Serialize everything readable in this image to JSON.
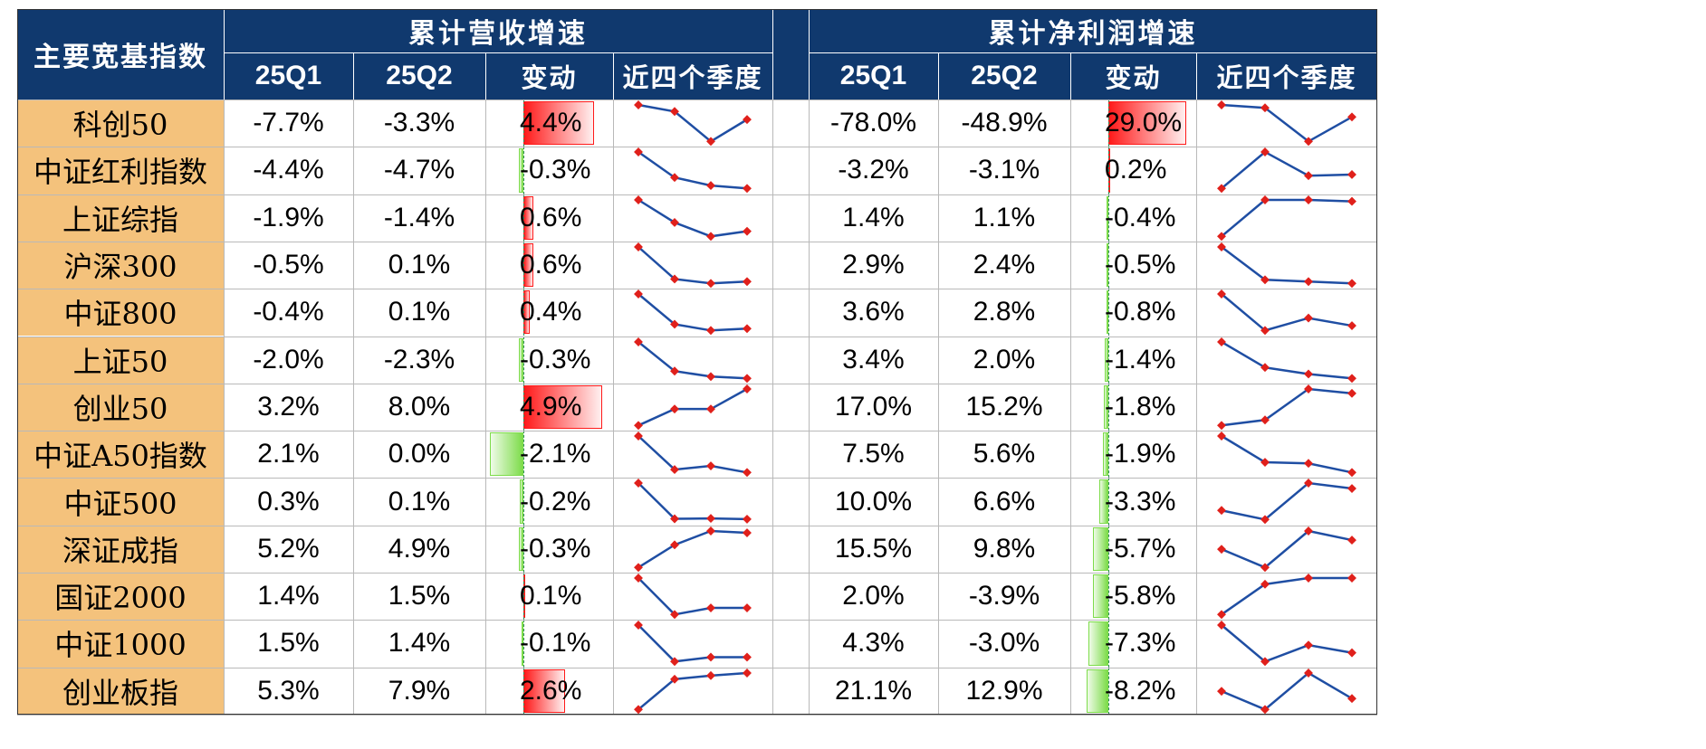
{
  "header": {
    "index_col": "主要宽基指数",
    "group1_title": "累计营收增速",
    "group2_title": "累计净利润增速",
    "sub": [
      "25Q1",
      "25Q2",
      "变动",
      "近四个季度"
    ]
  },
  "colors": {
    "header_bg": "#10396e",
    "name_bg": "#f4c27c",
    "positive_bar": "#ff1a1a",
    "negative_bar": "#7ddc4a",
    "spark_line": "#1f4ea3",
    "spark_marker": "#e0201b"
  },
  "chart_data": {
    "type": "table",
    "columns": [
      "主要宽基指数",
      "营收25Q1",
      "营收25Q2",
      "营收变动",
      "营收近四个季度",
      "净利润25Q1",
      "净利润25Q2",
      "净利润变动",
      "净利润近四个季度"
    ],
    "rows": [
      {
        "name": "科创50",
        "rev_q1": "-7.7%",
        "rev_q2": "-3.3%",
        "rev_chg": "4.4%",
        "rev_chg_v": 4.4,
        "rev_trend": [
          0.0,
          0.18,
          1.0,
          0.4
        ],
        "np_q1": "-78.0%",
        "np_q2": "-48.9%",
        "np_chg": "29.0%",
        "np_chg_v": 29.0,
        "np_trend": [
          0.0,
          0.08,
          1.0,
          0.33
        ]
      },
      {
        "name": "中证红利指数",
        "rev_q1": "-4.4%",
        "rev_q2": "-4.7%",
        "rev_chg": "-0.3%",
        "rev_chg_v": -0.3,
        "rev_trend": [
          0.0,
          0.7,
          0.92,
          1.0
        ],
        "np_q1": "-3.2%",
        "np_q2": "-3.1%",
        "np_chg": "0.2%",
        "np_chg_v": 0.2,
        "np_trend": [
          1.0,
          0.0,
          0.65,
          0.62
        ]
      },
      {
        "name": "上证综指",
        "rev_q1": "-1.9%",
        "rev_q2": "-1.4%",
        "rev_chg": "0.6%",
        "rev_chg_v": 0.6,
        "rev_trend": [
          0.0,
          0.62,
          1.0,
          0.86
        ],
        "np_q1": "1.4%",
        "np_q2": "1.1%",
        "np_chg": "-0.4%",
        "np_chg_v": -0.4,
        "np_trend": [
          1.0,
          0.0,
          0.0,
          0.04
        ]
      },
      {
        "name": "沪深300",
        "rev_q1": "-0.5%",
        "rev_q2": "0.1%",
        "rev_chg": "0.6%",
        "rev_chg_v": 0.6,
        "rev_trend": [
          0.0,
          0.88,
          1.0,
          0.95
        ],
        "np_q1": "2.9%",
        "np_q2": "2.4%",
        "np_chg": "-0.5%",
        "np_chg_v": -0.5,
        "np_trend": [
          0.0,
          0.9,
          0.95,
          1.0
        ]
      },
      {
        "name": "中证800",
        "rev_q1": "-0.4%",
        "rev_q2": "0.1%",
        "rev_chg": "0.4%",
        "rev_chg_v": 0.4,
        "rev_trend": [
          0.0,
          0.83,
          1.0,
          0.95
        ],
        "np_q1": "3.6%",
        "np_q2": "2.8%",
        "np_chg": "-0.8%",
        "np_chg_v": -0.8,
        "np_trend": [
          0.0,
          1.0,
          0.66,
          0.87
        ]
      },
      {
        "name": "上证50",
        "rev_q1": "-2.0%",
        "rev_q2": "-2.3%",
        "rev_chg": "-0.3%",
        "rev_chg_v": -0.3,
        "rev_trend": [
          0.0,
          0.8,
          0.95,
          1.0
        ],
        "np_q1": "3.4%",
        "np_q2": "2.0%",
        "np_chg": "-1.4%",
        "np_chg_v": -1.4,
        "np_trend": [
          0.0,
          0.7,
          0.88,
          1.0
        ]
      },
      {
        "name": "创业50",
        "rev_q1": "3.2%",
        "rev_q2": "8.0%",
        "rev_chg": "4.9%",
        "rev_chg_v": 4.9,
        "rev_trend": [
          1.0,
          0.55,
          0.55,
          0.0
        ],
        "np_q1": "17.0%",
        "np_q2": "15.2%",
        "np_chg": "-1.8%",
        "np_chg_v": -1.8,
        "np_trend": [
          1.0,
          0.85,
          0.0,
          0.12
        ]
      },
      {
        "name": "中证A50指数",
        "rev_q1": "2.1%",
        "rev_q2": "0.0%",
        "rev_chg": "-2.1%",
        "rev_chg_v": -2.1,
        "rev_trend": [
          0.0,
          0.92,
          0.82,
          1.0
        ],
        "np_q1": "7.5%",
        "np_q2": "5.6%",
        "np_chg": "-1.9%",
        "np_chg_v": -1.9,
        "np_trend": [
          0.0,
          0.72,
          0.75,
          1.0
        ]
      },
      {
        "name": "中证500",
        "rev_q1": "0.3%",
        "rev_q2": "0.1%",
        "rev_chg": "-0.2%",
        "rev_chg_v": -0.2,
        "rev_trend": [
          0.0,
          0.98,
          0.97,
          0.99
        ],
        "np_q1": "10.0%",
        "np_q2": "6.6%",
        "np_chg": "-3.3%",
        "np_chg_v": -3.3,
        "np_trend": [
          0.75,
          1.0,
          0.0,
          0.15
        ]
      },
      {
        "name": "深证成指",
        "rev_q1": "5.2%",
        "rev_q2": "4.9%",
        "rev_chg": "-0.3%",
        "rev_chg_v": -0.3,
        "rev_trend": [
          1.0,
          0.38,
          0.0,
          0.05
        ],
        "np_q1": "15.5%",
        "np_q2": "9.8%",
        "np_chg": "-5.7%",
        "np_chg_v": -5.7,
        "np_trend": [
          0.5,
          1.0,
          0.0,
          0.25
        ]
      },
      {
        "name": "国证2000",
        "rev_q1": "1.4%",
        "rev_q2": "1.5%",
        "rev_chg": "0.1%",
        "rev_chg_v": 0.1,
        "rev_trend": [
          0.0,
          1.0,
          0.82,
          0.82
        ],
        "np_q1": "2.0%",
        "np_q2": "-3.9%",
        "np_chg": "-5.8%",
        "np_chg_v": -5.8,
        "np_trend": [
          1.0,
          0.17,
          0.0,
          0.0
        ]
      },
      {
        "name": "中证1000",
        "rev_q1": "1.5%",
        "rev_q2": "1.4%",
        "rev_chg": "-0.1%",
        "rev_chg_v": -0.1,
        "rev_trend": [
          0.0,
          1.0,
          0.88,
          0.88
        ],
        "np_q1": "4.3%",
        "np_q2": "-3.0%",
        "np_chg": "-7.3%",
        "np_chg_v": -7.3,
        "np_trend": [
          0.0,
          1.0,
          0.55,
          0.76
        ]
      },
      {
        "name": "创业板指",
        "rev_q1": "5.3%",
        "rev_q2": "7.9%",
        "rev_chg": "2.6%",
        "rev_chg_v": 2.6,
        "rev_trend": [
          1.0,
          0.17,
          0.07,
          0.0
        ],
        "np_q1": "21.1%",
        "np_q2": "12.9%",
        "np_chg": "-8.2%",
        "np_chg_v": -8.2,
        "np_trend": [
          0.5,
          1.0,
          0.0,
          0.7
        ]
      }
    ]
  }
}
